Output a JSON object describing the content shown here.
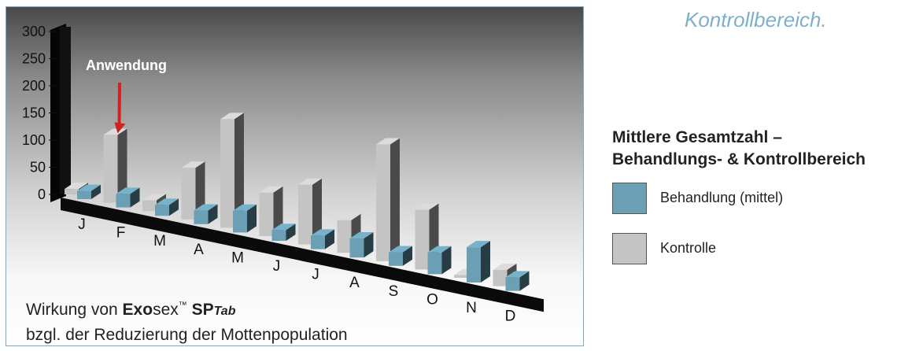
{
  "top_phrase": "Kontrollbereich.",
  "caption": {
    "line1_prefix": "Wirkung von ",
    "brand_bold": "Exo",
    "brand_rest": "sex",
    "tm": "™",
    "product_bold": "SP",
    "product_italic": "Tab",
    "line2": "bzgl. der Reduzierung der Mottenpopulation"
  },
  "legend": {
    "title_line1": "Mittlere Gesamtzahl –",
    "title_line2": "Behandlungs- & Kontrollbereich",
    "items": [
      {
        "label": "Behandlung (mittel)",
        "color": "#6a9fb5"
      },
      {
        "label": "Kontrolle",
        "color": "#c4c4c4"
      }
    ]
  },
  "chart_data": {
    "type": "bar",
    "categories": [
      "J",
      "F",
      "M",
      "A",
      "M",
      "J",
      "J",
      "A",
      "S",
      "O",
      "N",
      "D"
    ],
    "series": [
      {
        "name": "Kontrolle",
        "values": [
          10,
          125,
          20,
          95,
          200,
          80,
          110,
          60,
          215,
          110,
          5,
          30
        ],
        "color": "#c4c4c4"
      },
      {
        "name": "Behandlung (mittel)",
        "values": [
          15,
          25,
          20,
          25,
          40,
          20,
          25,
          35,
          25,
          40,
          65,
          25
        ],
        "color": "#6a9fb5"
      }
    ],
    "y_ticks": [
      "0",
      "50",
      "100",
      "150",
      "200",
      "250",
      "300"
    ],
    "ylim": [
      0,
      300
    ],
    "annotation": {
      "text": "Anwendung",
      "category_index": 1
    }
  }
}
